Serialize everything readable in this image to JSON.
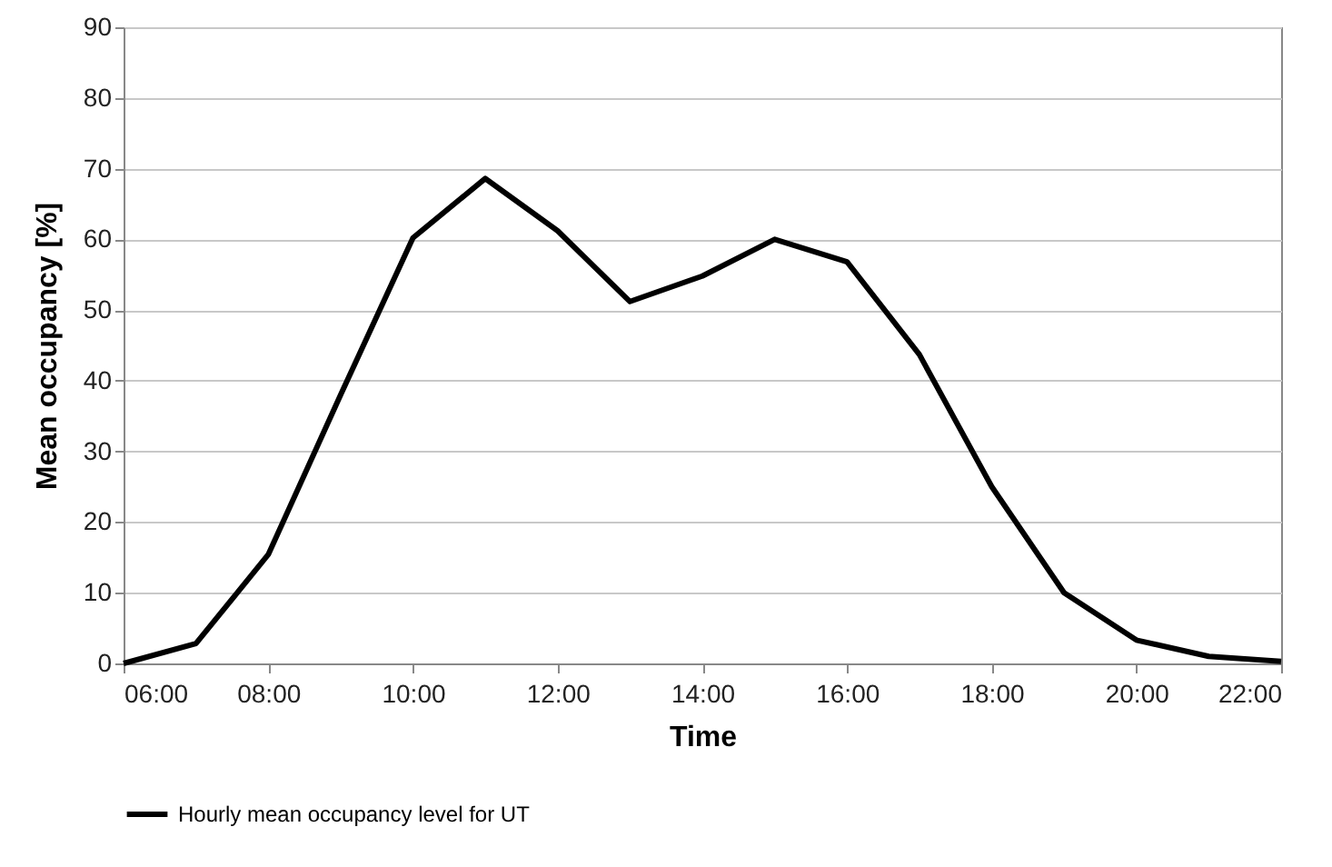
{
  "chart_data": {
    "type": "line",
    "xlabel": "Time",
    "ylabel": "Mean occupancy [%]",
    "x": [
      6,
      7,
      8,
      9,
      10,
      11,
      12,
      13,
      14,
      15,
      16,
      17,
      18,
      19,
      20,
      21,
      22
    ],
    "series": [
      {
        "name": "Hourly mean occupancy level for UT",
        "color": "#000000",
        "values": [
          0,
          2.8,
          15.4,
          38,
          60.2,
          68.6,
          61.2,
          51.2,
          54.8,
          60,
          56.8,
          43.7,
          25,
          10,
          3.3,
          1,
          0.3
        ]
      }
    ],
    "xlim": [
      6,
      22
    ],
    "xticks": [
      {
        "value": 6,
        "label": "06:00"
      },
      {
        "value": 8,
        "label": "08:00"
      },
      {
        "value": 10,
        "label": "10:00"
      },
      {
        "value": 12,
        "label": "12:00"
      },
      {
        "value": 14,
        "label": "14:00"
      },
      {
        "value": 16,
        "label": "16:00"
      },
      {
        "value": 18,
        "label": "18:00"
      },
      {
        "value": 20,
        "label": "20:00"
      },
      {
        "value": 22,
        "label": "22:00"
      }
    ],
    "ylim": [
      0,
      90
    ],
    "yticks": [
      0,
      10,
      20,
      30,
      40,
      50,
      60,
      70,
      80,
      90
    ],
    "grid": "y",
    "legend": "bottom",
    "line_style": "solid"
  }
}
